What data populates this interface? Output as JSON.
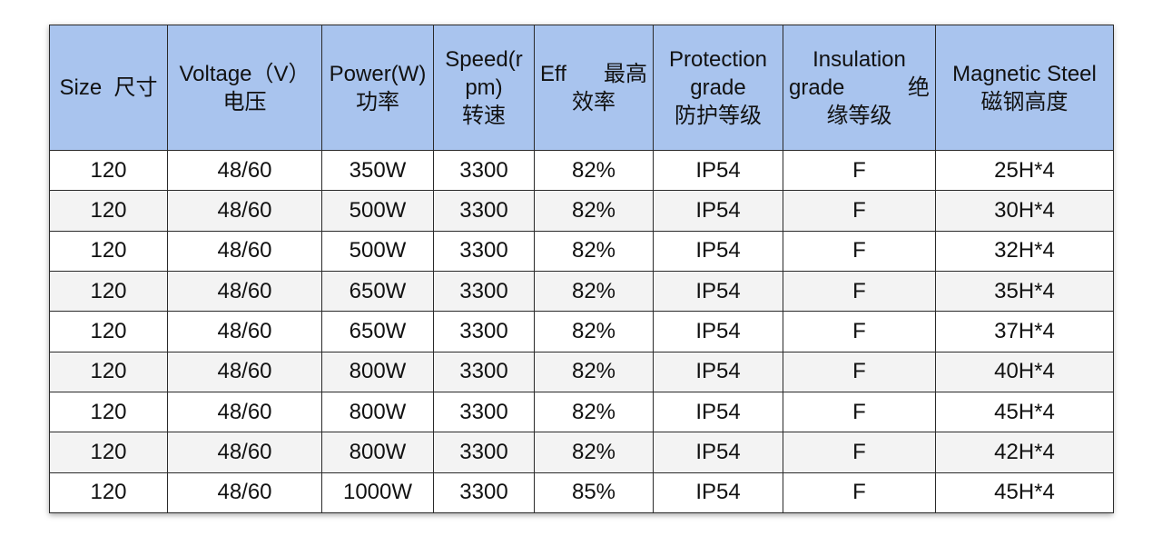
{
  "table": {
    "headers": [
      {
        "line1": "Size",
        "line1_cn": "尺寸"
      },
      {
        "line1": "Voltage（V）",
        "line2": "电压"
      },
      {
        "line1": "Power(W)",
        "line2": "功率"
      },
      {
        "line1": "Speed(r",
        "line2": "pm)",
        "line3": "转速"
      },
      {
        "line1": "Eff",
        "line1_cn": "最高",
        "line2": "效率"
      },
      {
        "line1": "Protection",
        "line2": "grade",
        "line3": "防护等级"
      },
      {
        "line1": "Insulation",
        "line2": "grade",
        "line2_cn": "绝",
        "line3": "缘等级"
      },
      {
        "line1": "Magnetic Steel",
        "line2": "磁钢高度"
      }
    ],
    "rows": [
      [
        "120",
        "48/60",
        "350W",
        "3300",
        "82%",
        "IP54",
        "F",
        "25H*4"
      ],
      [
        "120",
        "48/60",
        "500W",
        "3300",
        "82%",
        "IP54",
        "F",
        "30H*4"
      ],
      [
        "120",
        "48/60",
        "500W",
        "3300",
        "82%",
        "IP54",
        "F",
        "32H*4"
      ],
      [
        "120",
        "48/60",
        "650W",
        "3300",
        "82%",
        "IP54",
        "F",
        "35H*4"
      ],
      [
        "120",
        "48/60",
        "650W",
        "3300",
        "82%",
        "IP54",
        "F",
        "37H*4"
      ],
      [
        "120",
        "48/60",
        "800W",
        "3300",
        "82%",
        "IP54",
        "F",
        "40H*4"
      ],
      [
        "120",
        "48/60",
        "800W",
        "3300",
        "82%",
        "IP54",
        "F",
        "45H*4"
      ],
      [
        "120",
        "48/60",
        "800W",
        "3300",
        "82%",
        "IP54",
        "F",
        "42H*4"
      ],
      [
        "120",
        "48/60",
        "1000W",
        "3300",
        "85%",
        "IP54",
        "F",
        "45H*4"
      ]
    ]
  },
  "colors": {
    "header_bg": "#a9c4ee",
    "border": "#2a2a2a",
    "row_alt": "#f3f3f3"
  }
}
